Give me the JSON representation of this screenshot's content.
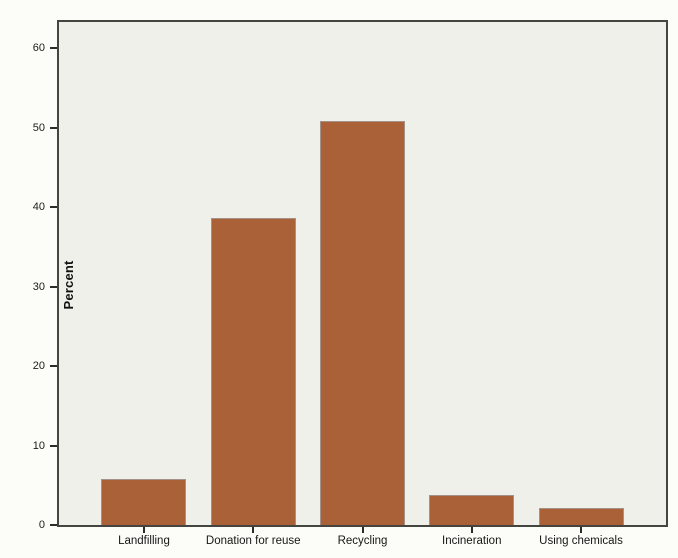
{
  "chart_data": {
    "type": "bar",
    "title": "",
    "categories": [
      "Landfilling",
      "Donation for reuse",
      "Recycling",
      "Incineration",
      "Using chemicals"
    ],
    "values": [
      5.8,
      38.6,
      50.9,
      3.8,
      2.1
    ],
    "series_name": "Percent",
    "xlabel": "",
    "ylabel": "Percent",
    "yticks": [
      0,
      10,
      20,
      30,
      40,
      50,
      60
    ],
    "ylim": [
      0,
      63.3
    ],
    "grid": false,
    "legend_position": "none",
    "bar_color": "#ab6138",
    "bar_border_color": "#a3918a",
    "plot_background": "#f0f0eb",
    "figure_background": "#fcfcf8",
    "axis_color": "#45453f"
  }
}
